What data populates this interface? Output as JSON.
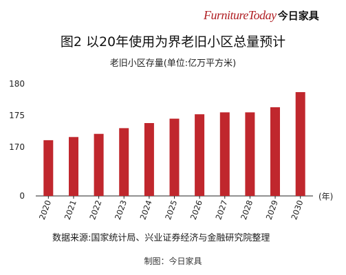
{
  "brand": {
    "latin": "FurnitureToday",
    "cn": "今日家具"
  },
  "colors": {
    "bar": "#c0272d",
    "axis": "#222222",
    "grid": "#dddddd",
    "brand": "#b01e23"
  },
  "footer": {
    "source": "数据来源:国家统计局、兴业证券经济与金融研究院整理",
    "maker": "制图：今日家具"
  },
  "chart_data": {
    "type": "bar",
    "title": "图2 以20年使用为界老旧小区总量预计",
    "ylabel": "老旧小区存量(单位:亿万平方米)",
    "xunit": "(年)",
    "categories": [
      "2020",
      "2021",
      "2022",
      "2023",
      "2024",
      "2025",
      "2026",
      "2027",
      "2028",
      "2029",
      "2030"
    ],
    "values": [
      171.1,
      171.6,
      172.1,
      173.0,
      173.8,
      174.5,
      175.2,
      175.5,
      175.5,
      176.3,
      178.7
    ],
    "yticks": [
      0,
      170,
      175,
      180
    ],
    "ylim": [
      0,
      180
    ],
    "grid": false,
    "axis_break": true
  }
}
